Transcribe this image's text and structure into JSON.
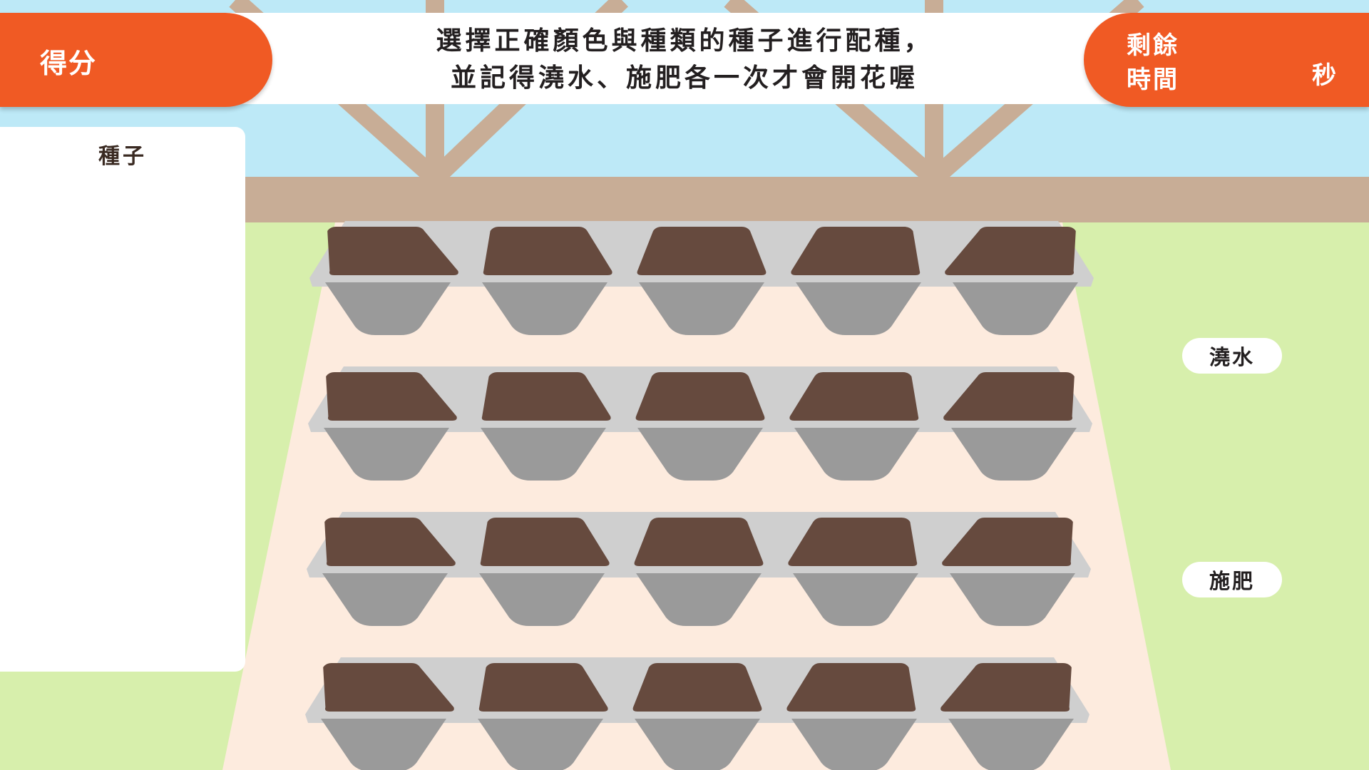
{
  "header": {
    "score_label": "得分",
    "instruction_line1": "選擇正確顏色與種類的種子進行配種，",
    "instruction_line2": "並記得澆水、施肥各一次才會開花喔",
    "timer_label_line1": "剩餘",
    "timer_label_line2": "時間",
    "timer_unit": "秒"
  },
  "seed_panel": {
    "title": "種子"
  },
  "actions": {
    "water_label": "澆水",
    "fertilize_label": "施肥"
  },
  "garden": {
    "rows": 4,
    "cols": 5
  },
  "colors": {
    "accent": "#f05a24",
    "sky": "#bde9f7",
    "beam": "#c8ad96",
    "grass": "#d7efac",
    "path": "#fdebde",
    "soil": "#664a3e",
    "pot": "#9a9a9a",
    "rim": "#cfcfcf"
  }
}
